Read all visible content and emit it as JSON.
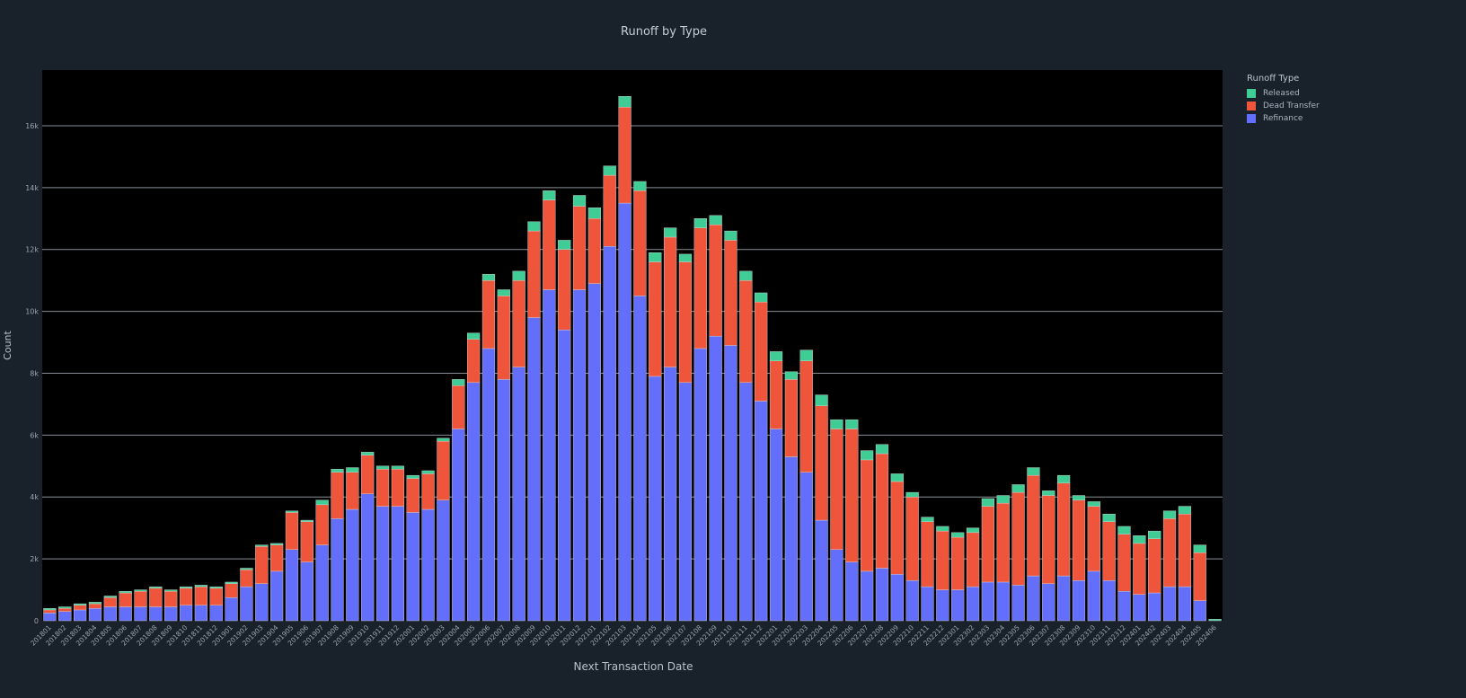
{
  "chart_data": {
    "type": "bar",
    "title": "Runoff by Type",
    "xlabel": "Next Transaction Date",
    "ylabel": "Count",
    "ylim": [
      0,
      17800
    ],
    "yticks": [
      0,
      2000,
      4000,
      6000,
      8000,
      10000,
      12000,
      14000,
      16000
    ],
    "ytick_labels": [
      "0",
      "2k",
      "4k",
      "6k",
      "8k",
      "10k",
      "12k",
      "14k",
      "16k"
    ],
    "legend_title": "Runoff Type",
    "legend_position": "top-right",
    "stacked": true,
    "grid": true,
    "categories": [
      "201801",
      "201802",
      "201803",
      "201804",
      "201805",
      "201806",
      "201807",
      "201808",
      "201809",
      "201810",
      "201811",
      "201812",
      "201901",
      "201902",
      "201903",
      "201904",
      "201905",
      "201906",
      "201907",
      "201908",
      "201909",
      "201910",
      "201911",
      "201912",
      "202001",
      "202002",
      "202003",
      "202004",
      "202005",
      "202006",
      "202007",
      "202008",
      "202009",
      "202010",
      "202011",
      "202012",
      "202101",
      "202102",
      "202103",
      "202104",
      "202105",
      "202106",
      "202107",
      "202108",
      "202109",
      "202110",
      "202111",
      "202112",
      "202201",
      "202202",
      "202203",
      "202204",
      "202205",
      "202206",
      "202207",
      "202208",
      "202209",
      "202210",
      "202211",
      "202212",
      "202301",
      "202302",
      "202303",
      "202304",
      "202305",
      "202306",
      "202307",
      "202308",
      "202309",
      "202310",
      "202311",
      "202312",
      "202401",
      "202402",
      "202403",
      "202404",
      "202405",
      "202406"
    ],
    "tick_labels": [
      "201801",
      "201802",
      "201803",
      "201804",
      "201805",
      "201806",
      "201807",
      "201808",
      "201809",
      "201810",
      "201811",
      "201812",
      "201901",
      "201902",
      "201903",
      "201904",
      "201905",
      "201906",
      "201907",
      "201908",
      "201909",
      "201910",
      "201911",
      "201912",
      "202001",
      "202002",
      "202003",
      "202004",
      "202005",
      "202006",
      "202007",
      "202008",
      "202009",
      "202010",
      "202011",
      "202012",
      "202101",
      "202102",
      "202103",
      "202104",
      "202105",
      "202106",
      "202107",
      "202108",
      "202109",
      "202110",
      "202111",
      "202112",
      "202201",
      "202202",
      "202203",
      "202204",
      "202205",
      "202206",
      "202207",
      "202208",
      "202209",
      "202210",
      "202211",
      "202212",
      "202301",
      "202302",
      "202303",
      "202304",
      "202305",
      "202306",
      "202307",
      "202308",
      "202309",
      "202310",
      "202311",
      "202312",
      "202401",
      "202402",
      "202403",
      "202404",
      "202405",
      "202406"
    ],
    "series": [
      {
        "name": "Refinance",
        "color": "#636efa",
        "values": [
          250,
          300,
          350,
          400,
          450,
          450,
          450,
          450,
          450,
          500,
          500,
          500,
          750,
          1100,
          1200,
          1600,
          2300,
          1900,
          2450,
          3300,
          3600,
          4100,
          3700,
          3700,
          3500,
          3600,
          3900,
          6200,
          7700,
          8800,
          7800,
          8200,
          9800,
          10700,
          9400,
          10700,
          10900,
          12100,
          13500,
          10500,
          7900,
          8200,
          7700,
          8800,
          9200,
          8900,
          7700,
          7100,
          6200,
          5300,
          4800,
          3250,
          2300,
          1900,
          1600,
          1700,
          1500,
          1300,
          1100,
          1000,
          1000,
          1100,
          1250,
          1250,
          1150,
          1450,
          1200,
          1450,
          1300,
          1600,
          1300,
          950,
          850,
          900,
          1100,
          1100,
          650,
          0
        ]
      },
      {
        "name": "Dead Transfer",
        "color": "#ef553b",
        "values": [
          100,
          100,
          150,
          150,
          300,
          450,
          500,
          600,
          500,
          550,
          600,
          550,
          450,
          550,
          1200,
          850,
          1200,
          1300,
          1300,
          1500,
          1200,
          1250,
          1200,
          1200,
          1100,
          1150,
          1900,
          1400,
          1400,
          2200,
          2700,
          2800,
          2800,
          2900,
          2600,
          2700,
          2100,
          2300,
          3100,
          3400,
          3700,
          4200,
          3900,
          3900,
          3600,
          3400,
          3300,
          3200,
          2200,
          2500,
          3600,
          3700,
          3900,
          4300,
          3600,
          3700,
          3000,
          2700,
          2100,
          1900,
          1700,
          1750,
          2450,
          2550,
          3000,
          3250,
          2850,
          3000,
          2600,
          2100,
          1900,
          1850,
          1650,
          1750,
          2200,
          2350,
          1550,
          0
        ]
      },
      {
        "name": "Released",
        "color": "#3fcc95",
        "values": [
          50,
          50,
          50,
          50,
          50,
          50,
          50,
          50,
          50,
          50,
          50,
          50,
          50,
          50,
          50,
          50,
          50,
          50,
          150,
          100,
          150,
          100,
          100,
          100,
          100,
          100,
          100,
          200,
          200,
          200,
          200,
          300,
          300,
          300,
          300,
          350,
          350,
          300,
          350,
          300,
          300,
          300,
          250,
          300,
          300,
          300,
          300,
          300,
          300,
          250,
          350,
          350,
          300,
          300,
          300,
          300,
          250,
          150,
          150,
          150,
          150,
          150,
          250,
          250,
          250,
          250,
          150,
          250,
          150,
          150,
          250,
          250,
          250,
          250,
          250,
          250,
          250,
          50
        ]
      }
    ]
  }
}
